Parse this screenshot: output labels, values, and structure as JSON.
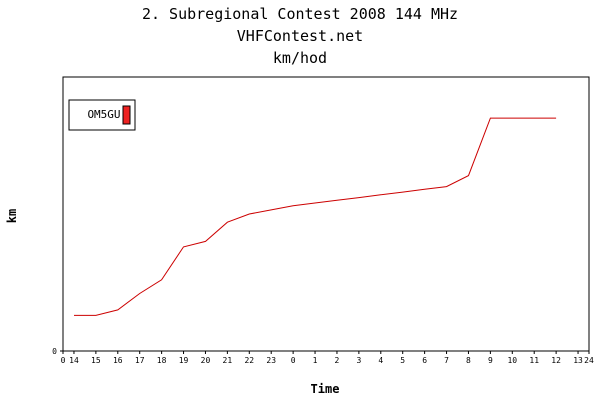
{
  "chart_data": {
    "type": "line",
    "title": "2. Subregional Contest 2008 144 MHz",
    "subtitle": "VHFContest.net",
    "subtitle2": "km/hod",
    "xlabel": "Time",
    "ylabel": "km",
    "x_tick_labels": [
      "0",
      "14",
      "15",
      "16",
      "17",
      "18",
      "19",
      "20",
      "21",
      "22",
      "23",
      "0",
      "1",
      "2",
      "3",
      "4",
      "5",
      "6",
      "7",
      "8",
      "9",
      "10",
      "11",
      "12",
      "13",
      "24"
    ],
    "x_tick_positions": [
      0,
      0.5,
      1.5,
      2.5,
      3.5,
      4.5,
      5.5,
      6.5,
      7.5,
      8.5,
      9.5,
      10.5,
      11.5,
      12.5,
      13.5,
      14.5,
      15.5,
      16.5,
      17.5,
      18.5,
      19.5,
      20.5,
      21.5,
      22.5,
      23.5,
      24
    ],
    "xlim": [
      0,
      24
    ],
    "y_tick_labels": [
      "0"
    ],
    "y_tick_values": [
      0
    ],
    "ylim": [
      0,
      100
    ],
    "grid": false,
    "legend_position": "top-left",
    "series": [
      {
        "name": "OM5GU",
        "color": "#cc0000",
        "legend_color": "#ee2222",
        "x": [
          0.5,
          1.5,
          2.5,
          3.5,
          4.5,
          5.5,
          6.5,
          7.5,
          8.5,
          9.5,
          10.5,
          11.5,
          12.5,
          13.5,
          14.5,
          15.5,
          16.5,
          17.5,
          18.5,
          19.5,
          20.5,
          21.5,
          22.5
        ],
        "values": [
          13,
          13,
          15,
          21,
          26,
          38,
          40,
          47,
          50,
          51.5,
          53,
          54,
          55,
          56,
          57,
          58,
          59,
          60,
          64,
          85,
          85,
          85,
          85
        ]
      }
    ]
  }
}
